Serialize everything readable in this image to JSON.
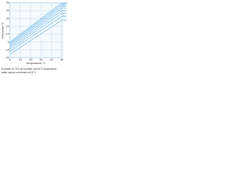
{
  "chart_data": {
    "type": "line",
    "x_label": "Temperature °C",
    "y_label": "Dew point °C",
    "caption": [
      "Example: at 70% air humidity and 30°C temperature,",
      "water vapour condenses at 24°C"
    ],
    "x": [
      0,
      10,
      20,
      30,
      40,
      50
    ],
    "series": [
      {
        "name": "100%",
        "color": "#1a8ad4",
        "values": [
          0,
          10,
          20,
          30,
          40,
          50
        ]
      },
      {
        "name": "90%",
        "color": "#1a8ad4",
        "values": [
          -1.5,
          8.4,
          18.3,
          28.2,
          38.0,
          47.9
        ]
      },
      {
        "name": "80%",
        "color": "#1a8ad4",
        "values": [
          -3.0,
          6.7,
          16.4,
          26.2,
          35.9,
          45.6
        ]
      },
      {
        "name": "70%",
        "color": "#1a8ad4",
        "values": [
          -4.8,
          4.8,
          14.4,
          23.9,
          33.5,
          43.0
        ]
      },
      {
        "name": "60%",
        "color": "#1a8ad4",
        "values": [
          -6.9,
          2.6,
          12.0,
          21.4,
          30.8,
          40.1
        ]
      },
      {
        "name": "50%",
        "color": "#1a8ad4",
        "values": [
          -9.2,
          0.0,
          9.3,
          18.4,
          27.6,
          36.7
        ]
      },
      {
        "name": "40%",
        "color": "#1a8ad4",
        "values": [
          -12.0,
          -3.0,
          6.0,
          14.9,
          23.8,
          32.7
        ]
      },
      {
        "name": "30%",
        "color": "#1a8ad4",
        "values": [
          -15.6,
          -6.8,
          1.9,
          10.5,
          19.1,
          27.7
        ]
      }
    ],
    "xlim": [
      0,
      50
    ],
    "xticks": [
      0,
      10,
      20,
      30,
      40,
      50
    ],
    "ylim": [
      -20,
      50
    ],
    "yticks": [
      -20,
      -10,
      0,
      10,
      20,
      30,
      40,
      50
    ],
    "grid": true
  }
}
